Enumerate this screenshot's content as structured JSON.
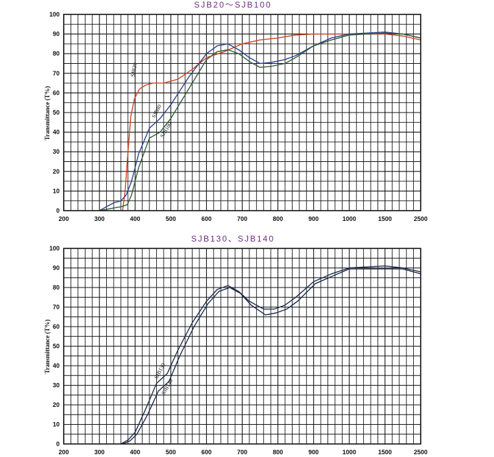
{
  "colors": {
    "title": "#6b2a7a",
    "grid": "#111111",
    "SJB20": "#d0401e",
    "SJB80": "#2a3f8a",
    "SJB100": "#2f5a3a",
    "SJB130": "#1c2a4a",
    "SJB140": "#1c2a4a"
  },
  "chart_data": [
    {
      "type": "line",
      "title": "SJB20～SJB100",
      "xlabel": "",
      "ylabel": "Transmittance (T%)",
      "x_ticks": [
        "200",
        "300",
        "400",
        "500",
        "600",
        "700",
        "800",
        "900",
        "1000",
        "1500",
        "2500"
      ],
      "y_ticks": [
        "0",
        "10",
        "20",
        "30",
        "40",
        "50",
        "60",
        "70",
        "80",
        "90",
        "100"
      ],
      "ylim": [
        0,
        100
      ],
      "x_unit_note": "",
      "grid": true,
      "series": [
        {
          "name": "SJB20",
          "x": [
            365,
            372,
            380,
            388,
            398,
            412,
            430,
            450,
            480,
            520,
            560,
            600,
            650,
            700,
            750,
            800,
            850,
            900,
            950,
            1000,
            1500,
            2000,
            2500
          ],
          "y": [
            0,
            10,
            30,
            48,
            57,
            62,
            64,
            65,
            65,
            67,
            72,
            78,
            81,
            85,
            87,
            88,
            89.5,
            90,
            90,
            90,
            90,
            89,
            87
          ]
        },
        {
          "name": "SJB80",
          "x": [
            300,
            320,
            340,
            360,
            375,
            390,
            410,
            440,
            470,
            500,
            550,
            600,
            630,
            660,
            690,
            720,
            750,
            780,
            820,
            850,
            900,
            950,
            1000,
            1500,
            2000,
            2500
          ],
          "y": [
            0,
            2,
            4,
            5,
            8,
            15,
            29,
            42,
            47,
            54,
            68,
            80,
            84,
            85,
            82,
            78,
            75,
            75.5,
            77,
            79,
            84,
            88,
            90,
            91,
            90,
            88
          ]
        },
        {
          "name": "SJB100",
          "x": [
            300,
            330,
            360,
            378,
            390,
            410,
            440,
            470,
            500,
            550,
            600,
            630,
            660,
            690,
            720,
            750,
            780,
            820,
            850,
            900,
            950,
            1000,
            1500,
            2000,
            2500
          ],
          "y": [
            0,
            1,
            2,
            3,
            8,
            22,
            37,
            40,
            47,
            62,
            77,
            81,
            82,
            80,
            76,
            73,
            73.5,
            75,
            78,
            84,
            87,
            89.5,
            90.5,
            90,
            88
          ]
        }
      ],
      "curve_labels": [
        "SJB20",
        "SJB80",
        "SJB100"
      ]
    },
    {
      "type": "line",
      "title": "SJB130、SJB140",
      "xlabel": "",
      "ylabel": "Transmittance (T%)",
      "x_ticks": [
        "200",
        "300",
        "400",
        "500",
        "600",
        "700",
        "800",
        "900",
        "1000",
        "1500",
        "2500"
      ],
      "y_ticks": [
        "0",
        "10",
        "20",
        "30",
        "40",
        "50",
        "60",
        "70",
        "80",
        "90",
        "100"
      ],
      "ylim": [
        0,
        100
      ],
      "grid": true,
      "series": [
        {
          "name": "SJB130",
          "x": [
            360,
            380,
            400,
            430,
            460,
            490,
            520,
            560,
            600,
            630,
            660,
            690,
            720,
            760,
            790,
            820,
            850,
            900,
            950,
            1000,
            1500,
            2000,
            2500
          ],
          "y": [
            0,
            2,
            6,
            18,
            31,
            36,
            48,
            62,
            73,
            79,
            81,
            78,
            73,
            69,
            69,
            71,
            75,
            83,
            87,
            90,
            91,
            90,
            88
          ]
        },
        {
          "name": "SJB140",
          "x": [
            365,
            385,
            405,
            435,
            465,
            495,
            525,
            565,
            605,
            635,
            665,
            695,
            725,
            765,
            795,
            825,
            855,
            905,
            955,
            1000,
            1500,
            2000,
            2500
          ],
          "y": [
            0,
            1.5,
            5,
            15,
            27,
            32,
            45,
            60,
            72,
            78,
            80,
            77,
            71,
            66,
            67,
            69,
            73,
            82,
            86,
            89.5,
            89.5,
            89.5,
            87
          ]
        }
      ],
      "curve_labels": [
        "SJB130",
        "SJB140"
      ]
    }
  ]
}
